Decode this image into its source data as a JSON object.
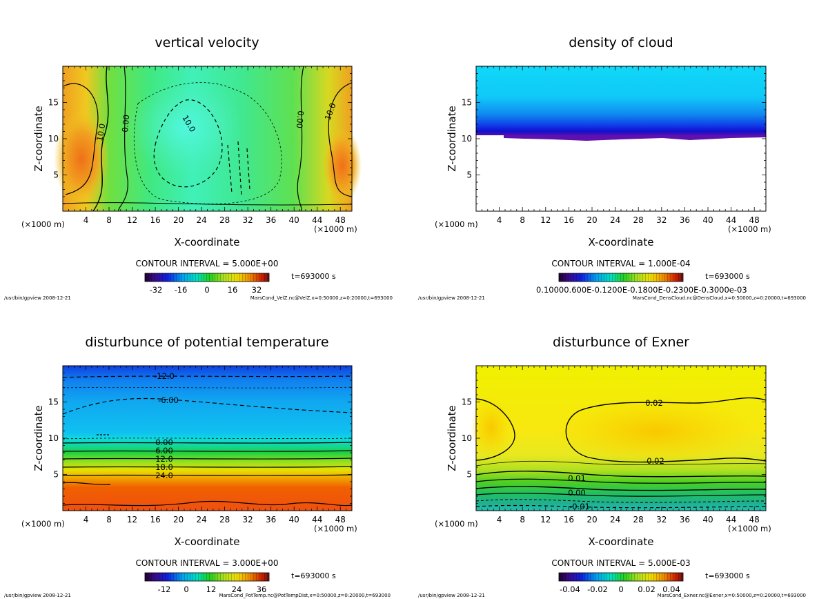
{
  "figure": {
    "panels": [
      {
        "title": "vertical velocity",
        "xlabel": "X-coordinate",
        "ylabel": "Z-coordinate",
        "xunit": "(×1000 m)",
        "xunit_right": "(×1000 m)",
        "xticks": [
          "4",
          "8",
          "12",
          "16",
          "20",
          "24",
          "28",
          "32",
          "36",
          "40",
          "44",
          "48"
        ],
        "yticks": [
          "5",
          "10",
          "15"
        ],
        "contour_interval": "CONTOUR INTERVAL = 5.000E+00",
        "time": "t=693000 s",
        "colorbar_ticks": [
          "-32",
          "-16",
          "0",
          "16",
          "32"
        ],
        "footer_left": "/usr/bin/gpview   2008-12-21",
        "footer_right": "MarsCond_VelZ.nc@VelZ,x=0:50000,z=0:20000,t=693000",
        "contour_labels": [
          "10.0",
          "0.00",
          "10.0",
          "0.00",
          "10.0"
        ]
      },
      {
        "title": "density of cloud",
        "xlabel": "X-coordinate",
        "ylabel": "Z-coordinate",
        "xunit": "(×1000 m)",
        "xunit_right": "(×1000 m)",
        "xticks": [
          "4",
          "8",
          "12",
          "16",
          "20",
          "24",
          "28",
          "32",
          "36",
          "40",
          "44",
          "48"
        ],
        "yticks": [
          "5",
          "10",
          "15"
        ],
        "contour_interval": "CONTOUR INTERVAL = 1.000E-04",
        "time": "t=693000 s",
        "colorbar_ticks_text": "0.10000.600E-0.1200E-0.1800E-0.2300E-0.3000e-03",
        "footer_left": "/usr/bin/gpview   2008-12-21",
        "footer_right": "MarsCond_DensCloud.nc@DensCloud,x=0:50000,z=0:20000,t=693000"
      },
      {
        "title": "disturbunce of potential temperature",
        "xlabel": "X-coordinate",
        "ylabel": "Z-coordinate",
        "xunit": "(×1000 m)",
        "xunit_right": "(×1000 m)",
        "xticks": [
          "4",
          "8",
          "12",
          "16",
          "20",
          "24",
          "28",
          "32",
          "36",
          "40",
          "44",
          "48"
        ],
        "yticks": [
          "5",
          "10",
          "15"
        ],
        "contour_interval": "CONTOUR INTERVAL = 3.000E+00",
        "time": "t=693000 s",
        "colorbar_ticks": [
          "-12",
          "0",
          "12",
          "24",
          "36"
        ],
        "footer_left": "/usr/bin/gpview   2008-12-21",
        "footer_right": "MarsCond_PotTemp.nc@PotTempDist,x=0:50000,z=0:20000,t=693000",
        "contour_labels": [
          "-12.0",
          "-6.00",
          "0.00",
          "6.00",
          "12.0",
          "18.0",
          "24.0"
        ]
      },
      {
        "title": "disturbunce of Exner",
        "xlabel": "X-coordinate",
        "ylabel": "Z-coordinate",
        "xunit": "(×1000 m)",
        "xunit_right": "(×1000 m)",
        "xticks": [
          "4",
          "8",
          "12",
          "16",
          "20",
          "24",
          "28",
          "32",
          "36",
          "40",
          "44",
          "48"
        ],
        "yticks": [
          "5",
          "10",
          "15"
        ],
        "contour_interval": "CONTOUR INTERVAL = 5.000E-03",
        "time": "t=693000 s",
        "colorbar_ticks": [
          "-0.04",
          "-0.02",
          "0",
          "0.02",
          "0.04"
        ],
        "footer_left": "/usr/bin/gpview   2008-12-21",
        "footer_right": "MarsCond_Exner.nc@Exner,x=0:50000,z=0:20000,t=693000",
        "contour_labels": [
          "0.02",
          "0.02",
          "0.01",
          "0.00",
          "-0.01"
        ]
      }
    ]
  },
  "chart_data": [
    {
      "type": "heatmap",
      "title": "vertical velocity",
      "xlabel": "X-coordinate",
      "ylabel": "Z-coordinate",
      "xlim": [
        0,
        50
      ],
      "ylim": [
        0,
        20
      ],
      "x_units": "×1000 m",
      "color_range": [
        -40,
        40
      ],
      "contour_interval": 5.0,
      "contour_values": [
        -10.0,
        0.0,
        10.0
      ],
      "time_s": 693000,
      "description_of_field": [
        {
          "x": 3,
          "z": 9,
          "value": 25
        },
        {
          "x": 47,
          "z": 7,
          "value": 22
        },
        {
          "x": 25,
          "z": 12,
          "value": -10
        },
        {
          "x": 30,
          "z": 6,
          "value": -6
        }
      ]
    },
    {
      "type": "heatmap",
      "title": "density of cloud",
      "xlabel": "X-coordinate",
      "ylabel": "Z-coordinate",
      "xlim": [
        0,
        50
      ],
      "ylim": [
        0,
        20
      ],
      "x_units": "×1000 m",
      "contour_interval": 0.0001,
      "time_s": 693000,
      "cloud_base_z": 10.3,
      "cloud_top_z": 20
    },
    {
      "type": "heatmap",
      "title": "disturbunce of potential temperature",
      "xlabel": "X-coordinate",
      "ylabel": "Z-coordinate",
      "xlim": [
        0,
        50
      ],
      "ylim": [
        0,
        20
      ],
      "x_units": "×1000 m",
      "color_range": [
        -18,
        42
      ],
      "contour_interval": 3.0,
      "time_s": 693000,
      "contours": [
        {
          "value": -12.0,
          "z": 18.6
        },
        {
          "value": -6.0,
          "z": 15.2
        },
        {
          "value": 0.0,
          "z": 9.6
        },
        {
          "value": 6.0,
          "z": 8.4
        },
        {
          "value": 12.0,
          "z": 7.3
        },
        {
          "value": 18.0,
          "z": 6.2
        },
        {
          "value": 24.0,
          "z": 5.0
        }
      ]
    },
    {
      "type": "heatmap",
      "title": "disturbunce of Exner",
      "xlabel": "X-coordinate",
      "ylabel": "Z-coordinate",
      "xlim": [
        0,
        50
      ],
      "ylim": [
        0,
        20
      ],
      "x_units": "×1000 m",
      "color_range": [
        -0.05,
        0.05
      ],
      "contour_interval": 0.005,
      "time_s": 693000,
      "contours": [
        {
          "value": 0.02,
          "z": 15
        },
        {
          "value": 0.02,
          "z": 7
        },
        {
          "value": 0.01,
          "z": 4.6
        },
        {
          "value": 0.0,
          "z": 2.6
        },
        {
          "value": -0.01,
          "z": 0.9
        }
      ]
    }
  ]
}
